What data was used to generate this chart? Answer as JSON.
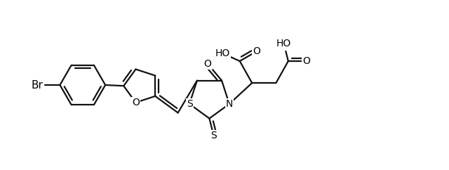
{
  "background_color": "#ffffff",
  "line_color": "#111111",
  "line_width": 1.6,
  "font_size": 10,
  "figsize": [
    6.4,
    2.42
  ],
  "dpi": 100,
  "xlim": [
    0,
    10
  ],
  "ylim": [
    0,
    3.8
  ]
}
